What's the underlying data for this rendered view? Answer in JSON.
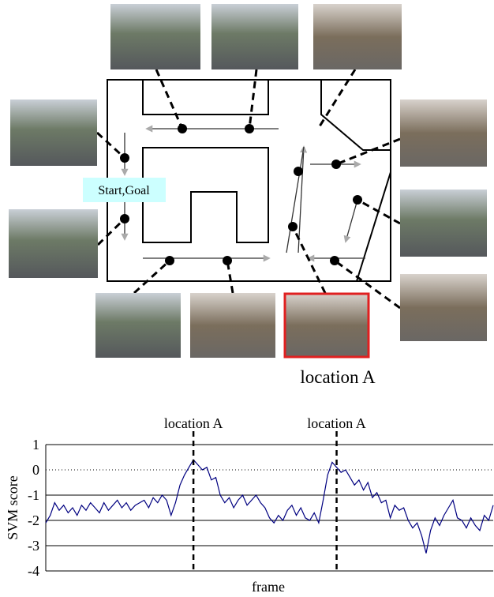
{
  "map": {
    "start_label": "Start,Goal",
    "location_label": "location A"
  },
  "chart_data": {
    "type": "line",
    "ylabel": "SVM score",
    "xlabel": "frame",
    "xlim": [
      0,
      100
    ],
    "ylim": [
      -4,
      1
    ],
    "yticks": [
      1,
      0,
      -1,
      -2,
      -3,
      -4
    ],
    "grid": true,
    "annotations": [
      {
        "x": 33,
        "label": "location A"
      },
      {
        "x": 65,
        "label": "location A"
      }
    ],
    "series": [
      {
        "name": "SVM score",
        "color": "#000080",
        "values": [
          -2.1,
          -1.8,
          -1.3,
          -1.6,
          -1.4,
          -1.7,
          -1.5,
          -1.8,
          -1.4,
          -1.6,
          -1.3,
          -1.5,
          -1.7,
          -1.3,
          -1.6,
          -1.4,
          -1.2,
          -1.5,
          -1.3,
          -1.6,
          -1.4,
          -1.3,
          -1.2,
          -1.5,
          -1.1,
          -1.3,
          -1.0,
          -1.2,
          -1.8,
          -1.3,
          -0.6,
          -0.2,
          0.1,
          0.4,
          0.2,
          0.0,
          0.1,
          -0.4,
          -0.3,
          -1.0,
          -1.3,
          -1.1,
          -1.5,
          -1.2,
          -1.0,
          -1.4,
          -1.2,
          -1.0,
          -1.3,
          -1.5,
          -1.9,
          -2.1,
          -1.8,
          -2.0,
          -1.6,
          -1.4,
          -1.8,
          -1.5,
          -1.9,
          -2.0,
          -1.7,
          -2.1,
          -1.2,
          -0.2,
          0.3,
          0.1,
          -0.1,
          0.0,
          -0.3,
          -0.6,
          -0.4,
          -0.8,
          -0.5,
          -1.1,
          -0.9,
          -1.3,
          -1.2,
          -1.9,
          -1.4,
          -1.6,
          -1.5,
          -2.0,
          -2.3,
          -2.1,
          -2.6,
          -3.3,
          -2.4,
          -1.9,
          -2.2,
          -1.8,
          -1.5,
          -1.2,
          -1.9,
          -2.0,
          -2.3,
          -1.9,
          -2.2,
          -2.4,
          -1.8,
          -2.0,
          -1.4
        ]
      }
    ]
  }
}
